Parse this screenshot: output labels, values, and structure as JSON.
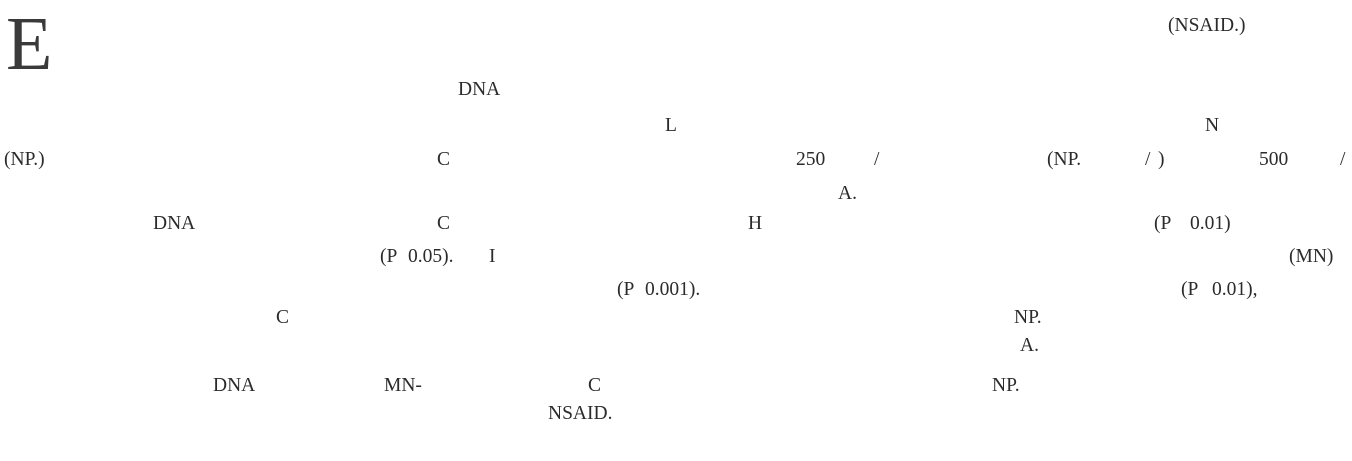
{
  "dropcap": "E",
  "lines": [
    {
      "segs": [
        "(NSAID.)"
      ]
    },
    {
      "segs": [
        "DNA"
      ]
    },
    {
      "segs": [
        "L",
        "N"
      ]
    },
    {
      "segs": [
        "(NP.)",
        "C",
        "250",
        "/",
        "(NP.",
        "/",
        ")",
        "500",
        "/"
      ]
    },
    {
      "segs": [
        "A."
      ]
    },
    {
      "segs": [
        "DNA",
        "C",
        "H",
        "(P",
        "0.01)"
      ]
    },
    {
      "segs": [
        "(P",
        "0.05).",
        "I",
        "(MN)"
      ]
    },
    {
      "segs": [
        "(P",
        "0.001).",
        "(P",
        "0.01),"
      ]
    },
    {
      "segs": [
        "C",
        "NP."
      ]
    },
    {
      "segs": [
        "A."
      ]
    },
    {
      "segs": [
        "DNA",
        "MN-",
        "C",
        "NP."
      ]
    },
    {
      "segs": [
        "NSAID."
      ]
    }
  ]
}
